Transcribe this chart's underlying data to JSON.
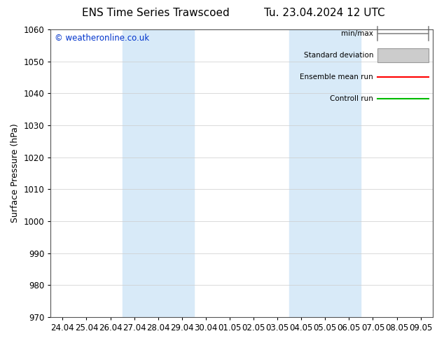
{
  "title_left": "ENS Time Series Trawscoed",
  "title_right": "Tu. 23.04.2024 12 UTC",
  "ylabel": "Surface Pressure (hPa)",
  "ylim": [
    970,
    1060
  ],
  "yticks": [
    970,
    980,
    990,
    1000,
    1010,
    1020,
    1030,
    1040,
    1050,
    1060
  ],
  "xtick_labels": [
    "24.04",
    "25.04",
    "26.04",
    "27.04",
    "28.04",
    "29.04",
    "30.04",
    "01.05",
    "02.05",
    "03.05",
    "04.05",
    "05.05",
    "06.05",
    "07.05",
    "08.05",
    "09.05"
  ],
  "num_xticks": 16,
  "shade_bands": [
    {
      "xstart": 3,
      "xend": 5
    },
    {
      "xstart": 10,
      "xend": 12
    }
  ],
  "shade_color": "#d8eaf8",
  "background_color": "#ffffff",
  "copyright_text": "© weatheronline.co.uk",
  "copyright_color": "#0033cc",
  "legend_labels": [
    "min/max",
    "Standard deviation",
    "Ensemble mean run",
    "Controll run"
  ],
  "legend_colors": [
    "#999999",
    "#cccccc",
    "#ff0000",
    "#00bb00"
  ],
  "title_fontsize": 11,
  "axis_label_fontsize": 9,
  "tick_fontsize": 8.5
}
